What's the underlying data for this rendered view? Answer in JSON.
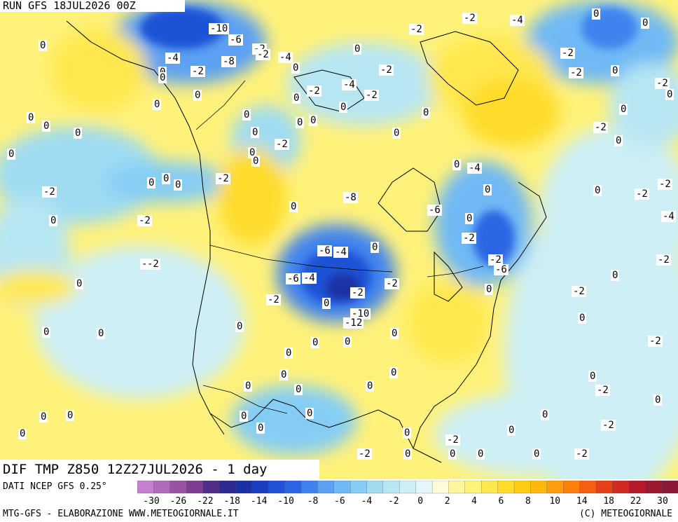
{
  "header": {
    "run_label": "RUN GFS 18JUL2026 00Z"
  },
  "field": {
    "title": "DIF TMP Z850 12Z27JUL2026 - 1 day"
  },
  "footer": {
    "data_source": "DATI NCEP GFS 0.25°",
    "credit_left": "MTG-GFS - ELABORAZIONE WWW.METEOGIORNALE.IT",
    "credit_right": "(C) METEOGIORNALE"
  },
  "legend": {
    "colors": [
      "#c77fd0",
      "#b06ab9",
      "#9a52a4",
      "#7f3d91",
      "#532d8b",
      "#2e2891",
      "#1c30a6",
      "#1a3ec0",
      "#1f52d6",
      "#2a66e3",
      "#3f83ee",
      "#5ba0f3",
      "#6fb9f5",
      "#85cdf4",
      "#9fdcf2",
      "#b7e6f3",
      "#cdeff5",
      "#e3f7f8",
      "#fffbd8",
      "#fff59e",
      "#fff27a",
      "#ffe84f",
      "#ffdc29",
      "#ffcc14",
      "#ffb80f",
      "#ff9d0d",
      "#ff7f0b",
      "#f55f13",
      "#e6411b",
      "#cf2b22",
      "#b51a29",
      "#9c1830",
      "#8a1836"
    ],
    "tick_labels": [
      "-30",
      "-26",
      "-22",
      "-18",
      "-14",
      "-10",
      "-8",
      "-6",
      "-4",
      "-2",
      "0",
      "2",
      "4",
      "6",
      "8",
      "10",
      "14",
      "18",
      "22",
      "30"
    ]
  },
  "map_labels": [
    "-10",
    "-6",
    "-8",
    "-4",
    "-2",
    "0",
    "-2",
    "-4",
    "-2",
    "0",
    "-2",
    "-2",
    "-4",
    "0",
    "0",
    "-2",
    "-2",
    "0",
    "-2",
    "0",
    "0",
    "-2",
    "0",
    "-2",
    "-2",
    "0",
    "-4",
    "-2",
    "0",
    "-2",
    "0",
    "-2",
    "0",
    "-2",
    "0",
    "-2",
    "0",
    "0",
    "-2",
    "0",
    "-4",
    "-2",
    "-2",
    "0",
    "0",
    "-2",
    "0",
    "0",
    "0",
    "0",
    "-4",
    "0",
    "0",
    "-2",
    "-2",
    "-6",
    "0",
    "-6",
    "-8",
    "0",
    "0",
    "-6",
    "-4",
    "-4",
    "-2",
    "-2",
    "0",
    "-10",
    "-12",
    "-6",
    "-2",
    "0",
    "0",
    "0",
    "0",
    "0",
    "0",
    "0",
    "0",
    "0",
    "0",
    "0",
    "0",
    "0",
    "0",
    "0",
    "0",
    "-2",
    "-2",
    "0",
    "0",
    "0",
    "-2",
    "-2",
    "0",
    "-2",
    "-2",
    "0",
    "0",
    "0",
    "0",
    "0",
    "0",
    "0",
    "0",
    "0",
    "0",
    "0",
    "0",
    "0",
    "0",
    "0",
    "0",
    "0",
    "-2",
    "0",
    "0",
    "0",
    "0",
    "-2",
    "0"
  ]
}
